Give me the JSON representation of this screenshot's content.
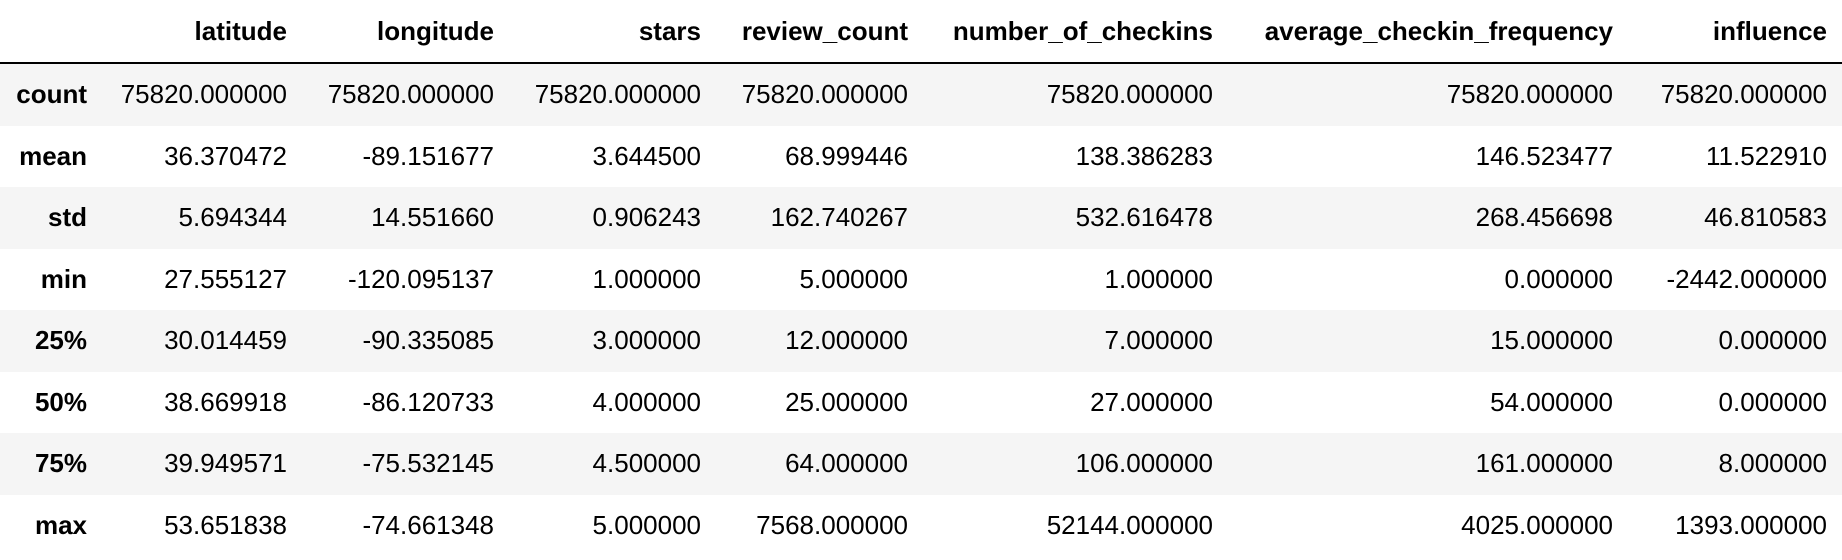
{
  "table": {
    "index_header": "",
    "columns": [
      "latitude",
      "longitude",
      "stars",
      "review_count",
      "number_of_checkins",
      "average_checkin_frequency",
      "influence"
    ],
    "rows": [
      {
        "label": "count",
        "values": [
          "75820.000000",
          "75820.000000",
          "75820.000000",
          "75820.000000",
          "75820.000000",
          "75820.000000",
          "75820.000000"
        ]
      },
      {
        "label": "mean",
        "values": [
          "36.370472",
          "-89.151677",
          "3.644500",
          "68.999446",
          "138.386283",
          "146.523477",
          "11.522910"
        ]
      },
      {
        "label": "std",
        "values": [
          "5.694344",
          "14.551660",
          "0.906243",
          "162.740267",
          "532.616478",
          "268.456698",
          "46.810583"
        ]
      },
      {
        "label": "min",
        "values": [
          "27.555127",
          "-120.095137",
          "1.000000",
          "5.000000",
          "1.000000",
          "0.000000",
          "-2442.000000"
        ]
      },
      {
        "label": "25%",
        "values": [
          "30.014459",
          "-90.335085",
          "3.000000",
          "12.000000",
          "7.000000",
          "15.000000",
          "0.000000"
        ]
      },
      {
        "label": "50%",
        "values": [
          "38.669918",
          "-86.120733",
          "4.000000",
          "25.000000",
          "27.000000",
          "54.000000",
          "0.000000"
        ]
      },
      {
        "label": "75%",
        "values": [
          "39.949571",
          "-75.532145",
          "4.500000",
          "64.000000",
          "106.000000",
          "161.000000",
          "8.000000"
        ]
      },
      {
        "label": "max",
        "values": [
          "53.651838",
          "-74.661348",
          "5.000000",
          "7568.000000",
          "52144.000000",
          "4025.000000",
          "1393.000000"
        ]
      }
    ]
  }
}
